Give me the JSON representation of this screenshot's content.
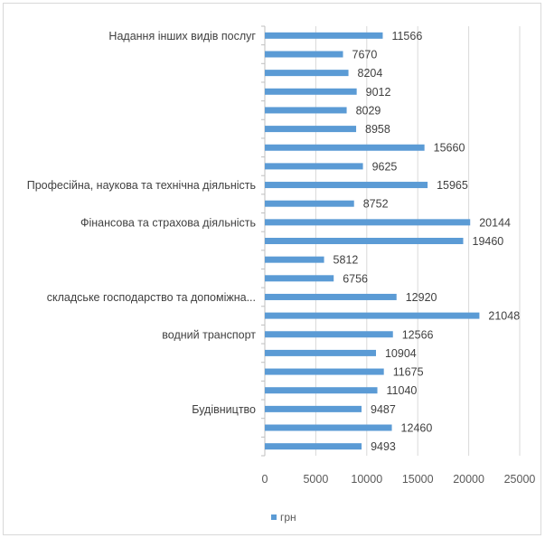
{
  "chart_data": {
    "type": "bar",
    "orientation": "horizontal",
    "categories": [
      "Надання інших видів послуг",
      "",
      "",
      "",
      "",
      "",
      "",
      "",
      "Професійна, наукова та технічна діяльність",
      "",
      "Фінансова та страхова діяльність",
      "",
      "",
      "",
      "складське господарство та допоміжна...",
      "",
      "водний транспорт",
      "",
      "",
      "",
      "Будівництво",
      "",
      ""
    ],
    "series": [
      {
        "name": "грн",
        "color": "#5b9bd5",
        "values": [
          11566,
          7670,
          8204,
          9012,
          8029,
          8958,
          15660,
          9625,
          15965,
          8752,
          20144,
          19460,
          5812,
          6756,
          12920,
          21048,
          12566,
          10904,
          11675,
          11040,
          9487,
          12460,
          9493
        ]
      }
    ],
    "data_labels": [
      "11566",
      "7670",
      "8204",
      "9012",
      "8029",
      "8958",
      "15660",
      "9625",
      "15965",
      "8752",
      "20144",
      "19460",
      "5812",
      "6756",
      "12920",
      "21048",
      "12566",
      "10904",
      "11675",
      "11040",
      "9487",
      "12460",
      "9493"
    ],
    "x_ticks": [
      "0",
      "5000",
      "10000",
      "15000",
      "20000",
      "25000"
    ],
    "xlim": [
      0,
      25000
    ],
    "grid": true,
    "legend": {
      "position": "bottom-left",
      "entries": [
        "грн"
      ]
    }
  }
}
